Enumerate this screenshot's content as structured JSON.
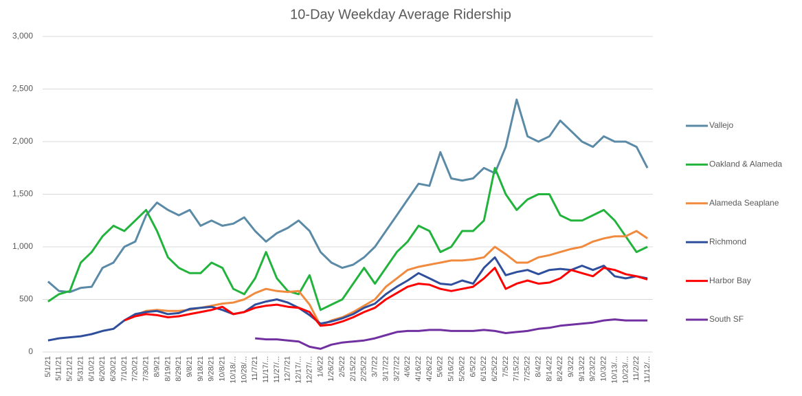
{
  "chart_data": {
    "type": "line",
    "title": "10-Day Weekday Average Ridership",
    "categories": [
      "5/1/21",
      "5/11/21",
      "5/21/21",
      "5/31/21",
      "6/10/21",
      "6/20/21",
      "6/30/21",
      "7/10/21",
      "7/20/21",
      "7/30/21",
      "8/9/21",
      "8/19/21",
      "8/29/21",
      "9/8/21",
      "9/18/21",
      "9/28/21",
      "10/8/21",
      "10/18/...",
      "10/28/...",
      "11/7/21",
      "11/17/...",
      "11/27/...",
      "12/7/21",
      "12/17/...",
      "12/27/...",
      "1/6/22",
      "1/26/22",
      "2/5/22",
      "2/15/22",
      "2/25/22",
      "3/7/22",
      "3/17/22",
      "3/27/22",
      "4/6/22",
      "4/16/22",
      "4/26/22",
      "5/6/22",
      "5/16/22",
      "5/26/22",
      "6/5/22",
      "6/15/22",
      "6/25/22",
      "7/5/22",
      "7/15/22",
      "7/25/22",
      "8/4/22",
      "8/14/22",
      "8/24/22",
      "9/3/22",
      "9/13/22",
      "9/23/22",
      "10/3/22",
      "10/13/...",
      "10/23/...",
      "11/2/22",
      "11/12/..."
    ],
    "series": [
      {
        "name": "Vallejo",
        "color": "#5b8aa6",
        "values": [
          670,
          580,
          570,
          610,
          620,
          800,
          850,
          1000,
          1050,
          1300,
          1420,
          1350,
          1300,
          1350,
          1200,
          1250,
          1200,
          1220,
          1280,
          1150,
          1050,
          1130,
          1180,
          1250,
          1150,
          950,
          850,
          800,
          830,
          900,
          1000,
          1150,
          1300,
          1450,
          1600,
          1580,
          1900,
          1650,
          1630,
          1650,
          1750,
          1700,
          1950,
          2400,
          2050,
          2000,
          2050,
          2200,
          2100,
          2000,
          1950,
          2050,
          2000,
          2000,
          1950,
          1750
        ]
      },
      {
        "name": "Oakland & Alameda",
        "color": "#22b33d",
        "values": [
          480,
          550,
          580,
          850,
          950,
          1100,
          1200,
          1150,
          1250,
          1350,
          1150,
          900,
          800,
          750,
          750,
          850,
          800,
          600,
          550,
          700,
          950,
          700,
          580,
          550,
          730,
          400,
          450,
          500,
          650,
          800,
          650,
          800,
          950,
          1050,
          1200,
          1150,
          950,
          1000,
          1150,
          1150,
          1250,
          1750,
          1500,
          1350,
          1450,
          1500,
          1500,
          1300,
          1250,
          1250,
          1300,
          1350,
          1250,
          1100,
          950,
          1000
        ]
      },
      {
        "name": "Alameda Seaplane",
        "color": "#f08a3e",
        "values": [
          null,
          null,
          null,
          null,
          null,
          null,
          null,
          300,
          350,
          390,
          400,
          390,
          390,
          400,
          420,
          440,
          460,
          470,
          500,
          560,
          600,
          580,
          570,
          580,
          450,
          250,
          300,
          330,
          380,
          440,
          500,
          620,
          700,
          780,
          810,
          830,
          850,
          870,
          870,
          880,
          900,
          1000,
          930,
          850,
          850,
          900,
          920,
          950,
          980,
          1000,
          1050,
          1080,
          1100,
          1100,
          1150,
          1080
        ]
      },
      {
        "name": "Richmond",
        "color": "#2f4e9c",
        "values": [
          110,
          130,
          140,
          150,
          170,
          200,
          220,
          300,
          360,
          380,
          390,
          360,
          370,
          410,
          420,
          430,
          400,
          360,
          380,
          450,
          480,
          500,
          470,
          420,
          350,
          270,
          290,
          320,
          360,
          420,
          460,
          550,
          620,
          680,
          750,
          700,
          650,
          640,
          680,
          650,
          800,
          900,
          730,
          760,
          780,
          740,
          780,
          790,
          780,
          820,
          780,
          820,
          720,
          700,
          720,
          700
        ]
      },
      {
        "name": "Harbor Bay",
        "color": "#ff0000",
        "values": [
          null,
          null,
          null,
          null,
          null,
          null,
          null,
          300,
          340,
          360,
          350,
          330,
          340,
          360,
          380,
          400,
          430,
          360,
          380,
          420,
          440,
          450,
          430,
          420,
          380,
          250,
          260,
          290,
          330,
          380,
          420,
          500,
          560,
          620,
          650,
          640,
          600,
          580,
          600,
          620,
          700,
          800,
          600,
          650,
          680,
          650,
          660,
          700,
          780,
          750,
          720,
          800,
          780,
          740,
          720,
          690
        ]
      },
      {
        "name": "South SF",
        "color": "#7030a0",
        "values": [
          null,
          null,
          null,
          null,
          null,
          null,
          null,
          null,
          null,
          null,
          null,
          null,
          null,
          null,
          null,
          null,
          null,
          null,
          null,
          130,
          120,
          120,
          110,
          100,
          50,
          30,
          70,
          90,
          100,
          110,
          130,
          160,
          190,
          200,
          200,
          210,
          210,
          200,
          200,
          200,
          210,
          200,
          180,
          190,
          200,
          220,
          230,
          250,
          260,
          270,
          280,
          300,
          310,
          300,
          300,
          300
        ]
      }
    ],
    "ylim": [
      0,
      3000
    ],
    "yticks": [
      0,
      500,
      {
        "value": 1000,
        "label": "1,000"
      },
      {
        "value": 1500,
        "label": "1,500"
      },
      {
        "value": 2000,
        "label": "2,000"
      },
      {
        "value": 2500,
        "label": "2,500"
      },
      {
        "value": 3000,
        "label": "3,000"
      }
    ],
    "grid": true,
    "legend": "right"
  }
}
